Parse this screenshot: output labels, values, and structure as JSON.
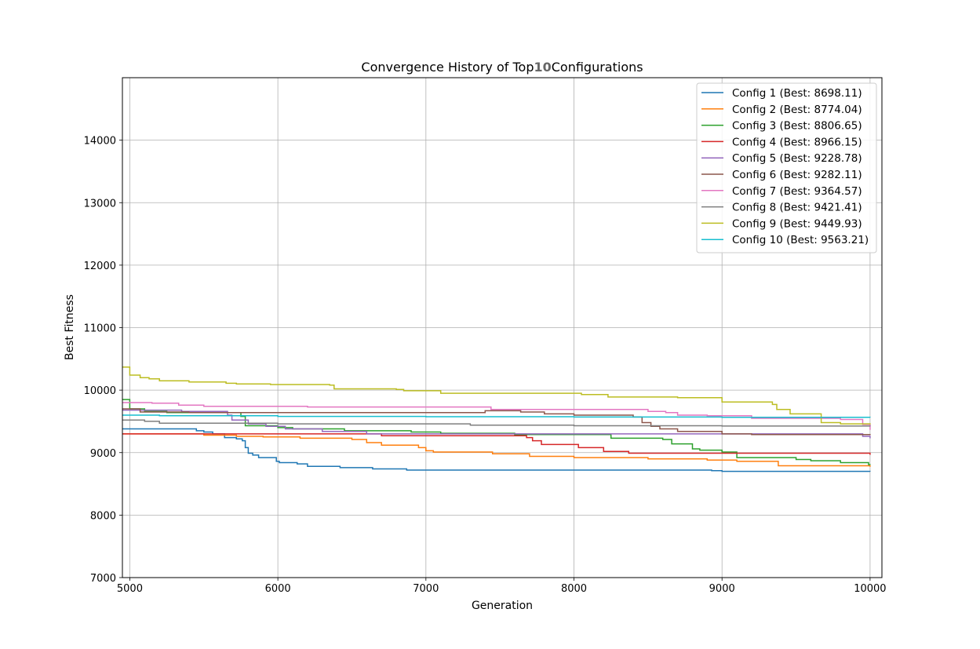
{
  "chart_data": {
    "type": "line",
    "title_prefix": "Convergence History of Top",
    "title_count": "10",
    "title_suffix": "Configurations",
    "xlabel": "Generation",
    "ylabel": "Best Fitness",
    "xlim": [
      4950,
      10080
    ],
    "ylim": [
      7000,
      15000
    ],
    "xticks": [
      5000,
      6000,
      7000,
      8000,
      9000,
      10000
    ],
    "yticks": [
      7000,
      8000,
      9000,
      10000,
      11000,
      12000,
      13000,
      14000
    ],
    "grid": true,
    "legend_position": "top-right",
    "series": [
      {
        "name": "Config 1 (Best: 8698.11)",
        "color": "#1f77b4",
        "points": [
          [
            4950,
            9380
          ],
          [
            5400,
            9380
          ],
          [
            5450,
            9350
          ],
          [
            5500,
            9330
          ],
          [
            5560,
            9300
          ],
          [
            5640,
            9240
          ],
          [
            5720,
            9220
          ],
          [
            5760,
            9190
          ],
          [
            5780,
            9080
          ],
          [
            5800,
            8990
          ],
          [
            5830,
            8960
          ],
          [
            5870,
            8920
          ],
          [
            5990,
            8860
          ],
          [
            6010,
            8840
          ],
          [
            6130,
            8820
          ],
          [
            6200,
            8780
          ],
          [
            6420,
            8760
          ],
          [
            6640,
            8740
          ],
          [
            6870,
            8720
          ],
          [
            8930,
            8710
          ],
          [
            9000,
            8700
          ],
          [
            10000,
            8698
          ]
        ]
      },
      {
        "name": "Config 2 (Best: 8774.04)",
        "color": "#ff7f0e",
        "points": [
          [
            4950,
            9300
          ],
          [
            5500,
            9280
          ],
          [
            5720,
            9260
          ],
          [
            5900,
            9250
          ],
          [
            6150,
            9230
          ],
          [
            6500,
            9210
          ],
          [
            6600,
            9160
          ],
          [
            6700,
            9120
          ],
          [
            6950,
            9080
          ],
          [
            7000,
            9030
          ],
          [
            7050,
            9010
          ],
          [
            7450,
            8980
          ],
          [
            7700,
            8940
          ],
          [
            8000,
            8920
          ],
          [
            8500,
            8900
          ],
          [
            8900,
            8880
          ],
          [
            9100,
            8860
          ],
          [
            9380,
            8790
          ],
          [
            10000,
            8774
          ]
        ]
      },
      {
        "name": "Config 3 (Best: 8806.65)",
        "color": "#2ca02c",
        "points": [
          [
            4950,
            9850
          ],
          [
            5000,
            9700
          ],
          [
            5100,
            9660
          ],
          [
            5250,
            9640
          ],
          [
            5750,
            9580
          ],
          [
            5780,
            9430
          ],
          [
            6000,
            9400
          ],
          [
            6100,
            9380
          ],
          [
            6450,
            9350
          ],
          [
            6900,
            9330
          ],
          [
            7100,
            9310
          ],
          [
            7600,
            9290
          ],
          [
            8250,
            9230
          ],
          [
            8600,
            9210
          ],
          [
            8660,
            9140
          ],
          [
            8800,
            9060
          ],
          [
            8850,
            9040
          ],
          [
            9000,
            9010
          ],
          [
            9100,
            8920
          ],
          [
            9500,
            8890
          ],
          [
            9600,
            8870
          ],
          [
            9800,
            8840
          ],
          [
            9990,
            8807
          ],
          [
            10000,
            8806
          ]
        ]
      },
      {
        "name": "Config 4 (Best: 8966.15)",
        "color": "#d62728",
        "points": [
          [
            4950,
            9300
          ],
          [
            6700,
            9270
          ],
          [
            7680,
            9240
          ],
          [
            7720,
            9190
          ],
          [
            7780,
            9130
          ],
          [
            8030,
            9080
          ],
          [
            8200,
            9020
          ],
          [
            8370,
            8990
          ],
          [
            10000,
            8966
          ]
        ]
      },
      {
        "name": "Config 5 (Best: 9228.78)",
        "color": "#9467bd",
        "points": [
          [
            4950,
            9680
          ],
          [
            5350,
            9660
          ],
          [
            5660,
            9600
          ],
          [
            5690,
            9520
          ],
          [
            5800,
            9460
          ],
          [
            5920,
            9420
          ],
          [
            6050,
            9380
          ],
          [
            6300,
            9340
          ],
          [
            6600,
            9300
          ],
          [
            9950,
            9260
          ],
          [
            10000,
            9229
          ]
        ]
      },
      {
        "name": "Config 6 (Best: 9282.11)",
        "color": "#8c564b",
        "points": [
          [
            4950,
            9700
          ],
          [
            5070,
            9650
          ],
          [
            5400,
            9640
          ],
          [
            7400,
            9670
          ],
          [
            7640,
            9650
          ],
          [
            7800,
            9620
          ],
          [
            8000,
            9600
          ],
          [
            8400,
            9570
          ],
          [
            8460,
            9480
          ],
          [
            8520,
            9420
          ],
          [
            8580,
            9380
          ],
          [
            8700,
            9340
          ],
          [
            9000,
            9300
          ],
          [
            9200,
            9290
          ],
          [
            10000,
            9282
          ]
        ]
      },
      {
        "name": "Config 7 (Best: 9364.57)",
        "color": "#e377c2",
        "points": [
          [
            4950,
            9800
          ],
          [
            5150,
            9790
          ],
          [
            5330,
            9760
          ],
          [
            5500,
            9740
          ],
          [
            6200,
            9730
          ],
          [
            7440,
            9690
          ],
          [
            8000,
            9690
          ],
          [
            8500,
            9660
          ],
          [
            8620,
            9640
          ],
          [
            8700,
            9600
          ],
          [
            8900,
            9590
          ],
          [
            9200,
            9550
          ],
          [
            9800,
            9530
          ],
          [
            9950,
            9450
          ],
          [
            10000,
            9365
          ]
        ]
      },
      {
        "name": "Config 8 (Best: 9421.41)",
        "color": "#7f7f7f",
        "points": [
          [
            4950,
            9520
          ],
          [
            5100,
            9500
          ],
          [
            5200,
            9470
          ],
          [
            6000,
            9460
          ],
          [
            7300,
            9440
          ],
          [
            8000,
            9430
          ],
          [
            9000,
            9425
          ],
          [
            10000,
            9421
          ]
        ]
      },
      {
        "name": "Config 9 (Best: 9449.93)",
        "color": "#bcbd22",
        "points": [
          [
            4950,
            10370
          ],
          [
            5000,
            10240
          ],
          [
            5070,
            10200
          ],
          [
            5130,
            10180
          ],
          [
            5200,
            10150
          ],
          [
            5400,
            10130
          ],
          [
            5650,
            10110
          ],
          [
            5720,
            10100
          ],
          [
            5950,
            10090
          ],
          [
            6350,
            10080
          ],
          [
            6380,
            10020
          ],
          [
            6800,
            10010
          ],
          [
            6850,
            9990
          ],
          [
            7100,
            9950
          ],
          [
            8000,
            9950
          ],
          [
            8050,
            9930
          ],
          [
            8230,
            9890
          ],
          [
            8700,
            9880
          ],
          [
            9000,
            9810
          ],
          [
            9340,
            9770
          ],
          [
            9370,
            9690
          ],
          [
            9460,
            9620
          ],
          [
            9670,
            9480
          ],
          [
            9800,
            9460
          ],
          [
            10000,
            9450
          ]
        ]
      },
      {
        "name": "Config 10 (Best: 9563.21)",
        "color": "#17becf",
        "points": [
          [
            4950,
            9600
          ],
          [
            5200,
            9590
          ],
          [
            6000,
            9580
          ],
          [
            7000,
            9575
          ],
          [
            8000,
            9570
          ],
          [
            9000,
            9565
          ],
          [
            10000,
            9563
          ]
        ]
      }
    ]
  }
}
